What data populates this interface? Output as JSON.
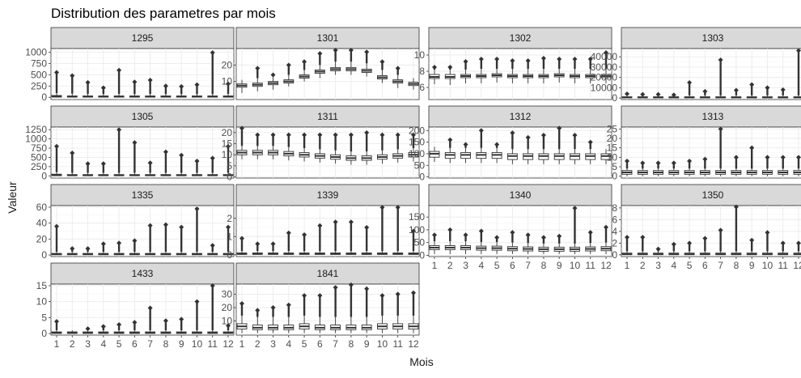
{
  "chart_data": {
    "type": "boxplot",
    "title": "Distribution des parametres par mois",
    "xlabel": "Mois",
    "ylabel": "Valeur",
    "categories": [
      "1",
      "2",
      "3",
      "4",
      "5",
      "6",
      "7",
      "8",
      "9",
      "10",
      "11",
      "12"
    ],
    "facets": [
      {
        "label": "1295",
        "yticks": [
          0,
          250,
          500,
          750,
          1000
        ],
        "ylim": [
          -50,
          1080
        ],
        "median": [
          20,
          15,
          15,
          15,
          15,
          15,
          15,
          15,
          15,
          15,
          15,
          15
        ],
        "q1": [
          5,
          5,
          5,
          5,
          5,
          5,
          5,
          5,
          5,
          5,
          5,
          5
        ],
        "q3": [
          40,
          30,
          30,
          30,
          30,
          30,
          30,
          30,
          30,
          30,
          30,
          30
        ],
        "whisker_low": [
          0,
          0,
          0,
          0,
          0,
          0,
          0,
          0,
          0,
          0,
          0,
          0
        ],
        "whisker_high": [
          90,
          80,
          75,
          70,
          75,
          70,
          70,
          70,
          70,
          70,
          70,
          75
        ],
        "outlier_max": [
          550,
          480,
          330,
          210,
          600,
          340,
          380,
          250,
          240,
          280,
          990,
          300
        ]
      },
      {
        "label": "1301",
        "yticks": [
          10,
          20
        ],
        "ylim": [
          -1,
          30
        ],
        "median": [
          7.5,
          8,
          9,
          10,
          13,
          16,
          17.5,
          17.5,
          16.5,
          12.5,
          10,
          8.5
        ],
        "q1": [
          6.5,
          7,
          8,
          9,
          12,
          15,
          16.5,
          16.5,
          15.5,
          11.5,
          9,
          7.5
        ],
        "q3": [
          8.5,
          9,
          10,
          11,
          14,
          17,
          18.5,
          18.5,
          17.5,
          13.5,
          11,
          9.5
        ],
        "whisker_low": [
          3,
          4,
          5,
          7,
          10,
          12,
          14,
          14,
          13,
          9,
          6,
          5
        ],
        "whisker_high": [
          11,
          12,
          13,
          14,
          17,
          20,
          22,
          22,
          21,
          17,
          14,
          12
        ],
        "outlier_max": [
          9,
          18,
          14,
          20,
          22,
          27,
          29,
          29,
          28,
          22,
          18,
          10
        ]
      },
      {
        "label": "1302",
        "yticks": [
          6,
          8,
          10
        ],
        "ylim": [
          4.5,
          10.8
        ],
        "median": [
          7.3,
          7.3,
          7.4,
          7.4,
          7.5,
          7.4,
          7.4,
          7.4,
          7.5,
          7.4,
          7.4,
          7.4
        ],
        "q1": [
          7.1,
          7.1,
          7.2,
          7.2,
          7.3,
          7.2,
          7.2,
          7.2,
          7.3,
          7.2,
          7.2,
          7.2
        ],
        "q3": [
          7.6,
          7.6,
          7.6,
          7.6,
          7.7,
          7.6,
          7.6,
          7.6,
          7.7,
          7.6,
          7.6,
          7.6
        ],
        "whisker_low": [
          6.4,
          6.3,
          6.5,
          6.5,
          6.6,
          6.5,
          6.5,
          6.5,
          6.6,
          6.5,
          6.5,
          6.5
        ],
        "whisker_high": [
          8.2,
          8.2,
          8.2,
          8.3,
          8.3,
          8.3,
          8.3,
          8.3,
          8.3,
          8.3,
          8.3,
          8.3
        ],
        "outlier_max": [
          8.5,
          8.5,
          9.2,
          9.5,
          9.5,
          9.3,
          9.3,
          9.6,
          9.5,
          9.5,
          9.5,
          10.3
        ]
      },
      {
        "label": "1303",
        "yticks": [
          0,
          10000,
          20000,
          30000,
          40000
        ],
        "ylim": [
          -1500,
          48000
        ],
        "median": [
          600,
          600,
          600,
          600,
          600,
          600,
          600,
          600,
          600,
          600,
          600,
          600
        ],
        "q1": [
          200,
          200,
          200,
          200,
          200,
          200,
          200,
          200,
          200,
          200,
          200,
          200
        ],
        "q3": [
          1200,
          1200,
          1200,
          1200,
          1200,
          1200,
          1200,
          1200,
          1200,
          1200,
          1200,
          1200
        ],
        "whisker_low": [
          0,
          0,
          0,
          0,
          0,
          0,
          0,
          0,
          0,
          0,
          0,
          0
        ],
        "whisker_high": [
          2500,
          2500,
          2500,
          2500,
          2500,
          2500,
          2500,
          2500,
          2500,
          2500,
          2500,
          2500
        ],
        "outlier_max": [
          4000,
          3500,
          3500,
          3000,
          15000,
          6500,
          37000,
          7500,
          13000,
          10000,
          8000,
          46000
        ]
      },
      {
        "label": "1305",
        "yticks": [
          0,
          250,
          500,
          750,
          1000,
          1250
        ],
        "ylim": [
          -60,
          1320
        ],
        "median": [
          20,
          15,
          15,
          15,
          15,
          15,
          15,
          15,
          15,
          15,
          15,
          15
        ],
        "q1": [
          5,
          5,
          5,
          5,
          5,
          5,
          5,
          5,
          5,
          5,
          5,
          5
        ],
        "q3": [
          45,
          35,
          35,
          35,
          35,
          35,
          35,
          35,
          35,
          35,
          35,
          35
        ],
        "whisker_low": [
          0,
          0,
          0,
          0,
          0,
          0,
          0,
          0,
          0,
          0,
          0,
          0
        ],
        "whisker_high": [
          100,
          80,
          80,
          80,
          80,
          80,
          80,
          80,
          80,
          80,
          80,
          80
        ],
        "outlier_max": [
          800,
          620,
          330,
          330,
          1250,
          900,
          350,
          650,
          560,
          400,
          480,
          800
        ]
      },
      {
        "label": "1311",
        "yticks": [
          0,
          5,
          10,
          15,
          20
        ],
        "ylim": [
          -0.5,
          22.5
        ],
        "median": [
          11,
          11,
          11,
          10.5,
          10,
          9.5,
          9,
          8.5,
          8.5,
          9,
          9.5,
          10
        ],
        "q1": [
          10,
          10,
          10,
          9.5,
          9,
          8.5,
          8,
          7.5,
          7.5,
          8,
          8.5,
          9
        ],
        "q3": [
          12,
          12,
          12,
          11.5,
          11,
          10.5,
          10,
          9.5,
          9.5,
          10,
          10.5,
          11
        ],
        "whisker_low": [
          8,
          8,
          8,
          7.5,
          7,
          6.5,
          6,
          5.5,
          5.5,
          6,
          6.5,
          7
        ],
        "whisker_high": [
          14,
          14,
          14,
          13.5,
          13,
          12.5,
          12,
          11.5,
          11.5,
          12,
          12.5,
          13
        ],
        "outlier_max": [
          22,
          19,
          19,
          19,
          19,
          19,
          19,
          19,
          20,
          19,
          19,
          19
        ]
      },
      {
        "label": "1312",
        "yticks": [
          0,
          50,
          100,
          150,
          200
        ],
        "ylim": [
          -5,
          215
        ],
        "median": [
          100,
          95,
          95,
          95,
          95,
          90,
          90,
          90,
          90,
          90,
          90,
          90
        ],
        "q1": [
          85,
          80,
          80,
          80,
          80,
          75,
          75,
          75,
          75,
          75,
          75,
          75
        ],
        "q3": [
          110,
          105,
          105,
          105,
          105,
          100,
          100,
          100,
          100,
          100,
          100,
          100
        ],
        "whisker_low": [
          65,
          60,
          60,
          60,
          60,
          55,
          55,
          55,
          55,
          55,
          55,
          55
        ],
        "whisker_high": [
          130,
          125,
          125,
          125,
          125,
          120,
          120,
          120,
          120,
          120,
          120,
          120
        ],
        "outlier_max": [
          120,
          160,
          140,
          200,
          140,
          190,
          170,
          180,
          210,
          180,
          150,
          120
        ]
      },
      {
        "label": "1313",
        "yticks": [
          0,
          5,
          10,
          15,
          20,
          25
        ],
        "ylim": [
          -1,
          26
        ],
        "median": [
          2,
          2,
          2,
          2,
          2,
          2,
          2,
          2,
          2,
          2,
          2,
          2
        ],
        "q1": [
          1,
          1,
          1,
          1,
          1,
          1,
          1,
          1,
          1,
          1,
          1,
          1
        ],
        "q3": [
          3,
          3,
          3,
          3,
          3,
          3,
          3,
          3,
          3,
          3,
          3,
          3
        ],
        "whisker_low": [
          0,
          0,
          0,
          0,
          0,
          0,
          0,
          0,
          0,
          0,
          0,
          0
        ],
        "whisker_high": [
          4,
          4,
          4,
          4,
          4,
          4,
          4,
          4,
          4,
          4,
          4,
          4
        ],
        "outlier_max": [
          8,
          7,
          7,
          7,
          8,
          9,
          25,
          10,
          15,
          10,
          10,
          10
        ]
      },
      {
        "label": "1335",
        "yticks": [
          0,
          20,
          40,
          60
        ],
        "ylim": [
          -2,
          62
        ],
        "median": [
          1,
          1,
          1,
          1,
          1,
          1,
          1,
          1,
          1,
          1,
          1,
          1
        ],
        "q1": [
          0.3,
          0.3,
          0.3,
          0.3,
          0.3,
          0.3,
          0.3,
          0.3,
          0.3,
          0.3,
          0.3,
          0.3
        ],
        "q3": [
          2,
          2,
          2,
          2,
          2,
          2,
          2,
          2,
          2,
          2,
          2,
          2
        ],
        "whisker_low": [
          0,
          0,
          0,
          0,
          0,
          0,
          0,
          0,
          0,
          0,
          0,
          0
        ],
        "whisker_high": [
          4,
          4,
          4,
          4,
          4,
          4,
          4,
          4,
          4,
          4,
          4,
          4
        ],
        "outlier_max": [
          36,
          8,
          8,
          14,
          15,
          18,
          37,
          38,
          35,
          58,
          12,
          35
        ]
      },
      {
        "label": "1339",
        "yticks": [
          0,
          1,
          2
        ],
        "ylim": [
          -0.1,
          2.7
        ],
        "median": [
          0.05,
          0.05,
          0.05,
          0.05,
          0.05,
          0.05,
          0.05,
          0.05,
          0.05,
          0.05,
          0.05,
          0.05
        ],
        "q1": [
          0.02,
          0.02,
          0.02,
          0.02,
          0.02,
          0.02,
          0.02,
          0.02,
          0.02,
          0.02,
          0.02,
          0.02
        ],
        "q3": [
          0.1,
          0.1,
          0.1,
          0.1,
          0.1,
          0.1,
          0.1,
          0.1,
          0.1,
          0.1,
          0.1,
          0.1
        ],
        "whisker_low": [
          0,
          0,
          0,
          0,
          0,
          0,
          0,
          0,
          0,
          0,
          0,
          0
        ],
        "whisker_high": [
          0.2,
          0.2,
          0.2,
          0.2,
          0.2,
          0.2,
          0.2,
          0.2,
          0.2,
          0.2,
          0.2,
          0.2
        ],
        "outlier_max": [
          0.9,
          0.6,
          0.6,
          1.2,
          1.1,
          1.6,
          1.8,
          1.8,
          1.5,
          2.6,
          2.6,
          1.3
        ]
      },
      {
        "label": "1340",
        "yticks": [
          0,
          50,
          100,
          150
        ],
        "ylim": [
          -5,
          195
        ],
        "median": [
          30,
          30,
          30,
          28,
          28,
          26,
          25,
          24,
          24,
          24,
          25,
          26
        ],
        "q1": [
          22,
          22,
          22,
          20,
          20,
          18,
          17,
          16,
          16,
          16,
          17,
          18
        ],
        "q3": [
          38,
          38,
          38,
          36,
          36,
          34,
          33,
          32,
          32,
          32,
          33,
          34
        ],
        "whisker_low": [
          5,
          5,
          5,
          5,
          5,
          5,
          5,
          5,
          5,
          5,
          5,
          5
        ],
        "whisker_high": [
          55,
          55,
          55,
          52,
          52,
          50,
          48,
          46,
          46,
          46,
          48,
          50
        ],
        "outlier_max": [
          80,
          100,
          80,
          95,
          70,
          90,
          80,
          70,
          75,
          185,
          90,
          110
        ]
      },
      {
        "label": "1350",
        "yticks": [
          0,
          2,
          4,
          6,
          8
        ],
        "ylim": [
          -0.3,
          8.4
        ],
        "median": [
          0.1,
          0.1,
          0.1,
          0.1,
          0.1,
          0.1,
          0.1,
          0.1,
          0.1,
          0.1,
          0.1,
          0.1
        ],
        "q1": [
          0.03,
          0.03,
          0.03,
          0.03,
          0.03,
          0.03,
          0.03,
          0.03,
          0.03,
          0.03,
          0.03,
          0.03
        ],
        "q3": [
          0.3,
          0.3,
          0.3,
          0.3,
          0.3,
          0.3,
          0.3,
          0.3,
          0.3,
          0.3,
          0.3,
          0.3
        ],
        "whisker_low": [
          0,
          0,
          0,
          0,
          0,
          0,
          0,
          0,
          0,
          0,
          0,
          0
        ],
        "whisker_high": [
          0.6,
          0.6,
          0.6,
          0.6,
          0.6,
          0.6,
          0.6,
          0.6,
          0.6,
          0.6,
          0.6,
          0.6
        ],
        "outlier_max": [
          3,
          3,
          1,
          1.8,
          2,
          2.8,
          4.2,
          8.2,
          2.5,
          3.8,
          2,
          2
        ]
      },
      {
        "label": "1433",
        "yticks": [
          0,
          5,
          10,
          15
        ],
        "ylim": [
          -0.5,
          15.5
        ],
        "median": [
          0.2,
          0.2,
          0.2,
          0.2,
          0.2,
          0.2,
          0.2,
          0.2,
          0.2,
          0.2,
          0.2,
          0.2
        ],
        "q1": [
          0.05,
          0.05,
          0.05,
          0.05,
          0.05,
          0.05,
          0.05,
          0.05,
          0.05,
          0.05,
          0.05,
          0.05
        ],
        "q3": [
          0.5,
          0.5,
          0.5,
          0.5,
          0.5,
          0.5,
          0.5,
          0.5,
          0.5,
          0.5,
          0.5,
          0.5
        ],
        "whisker_low": [
          0,
          0,
          0,
          0,
          0,
          0,
          0,
          0,
          0,
          0,
          0,
          0
        ],
        "whisker_high": [
          1,
          1,
          1,
          1,
          1,
          1,
          1,
          1,
          1,
          1,
          1,
          1
        ],
        "outlier_max": [
          3.8,
          1,
          1.5,
          2.2,
          2.8,
          3.5,
          8,
          4,
          4.5,
          10,
          15,
          2.5
        ]
      },
      {
        "label": "1841",
        "yticks": [
          10,
          20,
          30
        ],
        "ylim": [
          -0.5,
          37.5
        ],
        "median": [
          6,
          5,
          5,
          5,
          6,
          5,
          5,
          5,
          5,
          6,
          6,
          6
        ],
        "q1": [
          4,
          3.5,
          3.5,
          3.5,
          4,
          3.5,
          3.5,
          3.5,
          3.5,
          4,
          4,
          4
        ],
        "q3": [
          8,
          7,
          7,
          7,
          8,
          7,
          7,
          7,
          7,
          8,
          8,
          8
        ],
        "whisker_low": [
          1,
          1,
          1,
          1,
          1,
          1,
          1,
          1,
          1,
          1,
          1,
          1
        ],
        "whisker_high": [
          14,
          13,
          13,
          13,
          14,
          13,
          13,
          13,
          13,
          14,
          14,
          14
        ],
        "outlier_max": [
          23,
          18,
          20,
          22,
          29,
          29,
          35,
          37,
          34,
          29,
          30,
          31
        ]
      }
    ]
  }
}
